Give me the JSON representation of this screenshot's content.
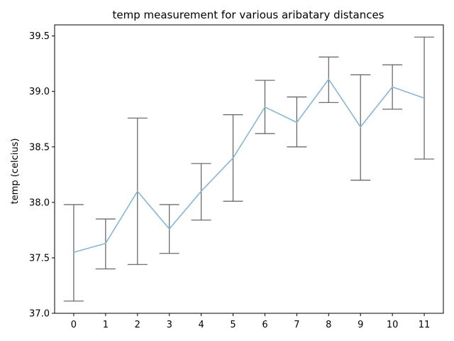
{
  "chart_data": {
    "type": "line",
    "title": "temp measurement for various aribatary distances",
    "xlabel": "",
    "ylabel": "temp (celcius)",
    "x": [
      0,
      1,
      2,
      3,
      4,
      5,
      6,
      7,
      8,
      9,
      10,
      11
    ],
    "xticks": [
      "0",
      "1",
      "2",
      "3",
      "4",
      "5",
      "6",
      "7",
      "8",
      "9",
      "10",
      "11"
    ],
    "xlim": [
      -0.6,
      11.6
    ],
    "ylim": [
      37.0,
      39.6
    ],
    "yticks": [
      37.0,
      37.5,
      38.0,
      38.5,
      39.0,
      39.5
    ],
    "ytick_labels": [
      "37.0",
      "37.5",
      "38.0",
      "38.5",
      "39.0",
      "39.5"
    ],
    "grid": false,
    "series": [
      {
        "values": [
          37.55,
          37.63,
          38.1,
          37.76,
          38.1,
          38.4,
          38.86,
          38.72,
          39.11,
          38.68,
          39.04,
          38.94
        ],
        "err_low": [
          37.11,
          37.4,
          37.44,
          37.54,
          37.84,
          38.01,
          38.62,
          38.5,
          38.9,
          38.2,
          38.84,
          38.39
        ],
        "err_high": [
          37.98,
          37.85,
          38.76,
          37.98,
          38.35,
          38.79,
          39.1,
          38.95,
          39.31,
          39.15,
          39.24,
          39.49
        ],
        "color": "#85b6d8",
        "error_color": "#5f5f5f"
      }
    ]
  }
}
